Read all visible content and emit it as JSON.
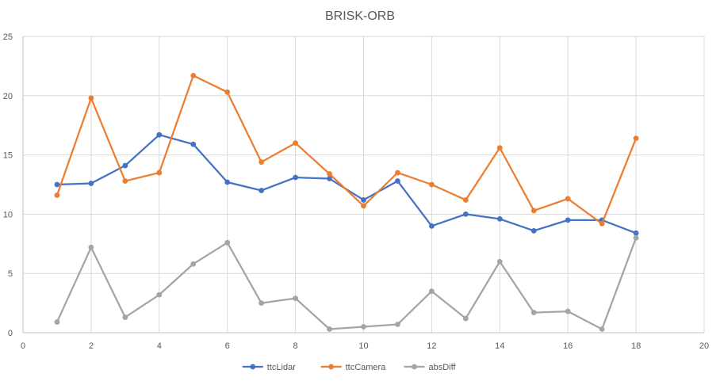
{
  "chart_data": {
    "type": "line",
    "title": "BRISK-ORB",
    "xlabel": "",
    "ylabel": "",
    "xlim": [
      0,
      20
    ],
    "ylim": [
      0,
      25
    ],
    "xticks": [
      0,
      2,
      4,
      6,
      8,
      10,
      12,
      14,
      16,
      18,
      20
    ],
    "yticks": [
      0,
      5,
      10,
      15,
      20,
      25
    ],
    "grid": true,
    "legend_position": "bottom",
    "x": [
      1,
      2,
      3,
      4,
      5,
      6,
      7,
      8,
      9,
      10,
      11,
      12,
      13,
      14,
      15,
      16,
      17,
      18
    ],
    "series": [
      {
        "name": "ttcLidar",
        "color": "#4472c4",
        "values": [
          12.5,
          12.6,
          14.1,
          16.7,
          15.9,
          12.7,
          12.0,
          13.1,
          13.0,
          11.2,
          12.8,
          9.0,
          10.0,
          9.6,
          8.6,
          9.5,
          9.5,
          8.4
        ]
      },
      {
        "name": "ttcCamera",
        "color": "#ed7d31",
        "values": [
          11.6,
          19.8,
          12.8,
          13.5,
          21.7,
          20.3,
          14.4,
          16.0,
          13.4,
          10.7,
          13.5,
          12.5,
          11.2,
          15.6,
          10.3,
          11.3,
          9.2,
          16.4
        ]
      },
      {
        "name": "absDiff",
        "color": "#a5a5a5",
        "values": [
          0.9,
          7.2,
          1.3,
          3.2,
          5.8,
          7.6,
          2.5,
          2.9,
          0.3,
          0.5,
          0.7,
          3.5,
          1.2,
          6.0,
          1.7,
          1.8,
          0.3,
          8.0
        ]
      }
    ]
  }
}
